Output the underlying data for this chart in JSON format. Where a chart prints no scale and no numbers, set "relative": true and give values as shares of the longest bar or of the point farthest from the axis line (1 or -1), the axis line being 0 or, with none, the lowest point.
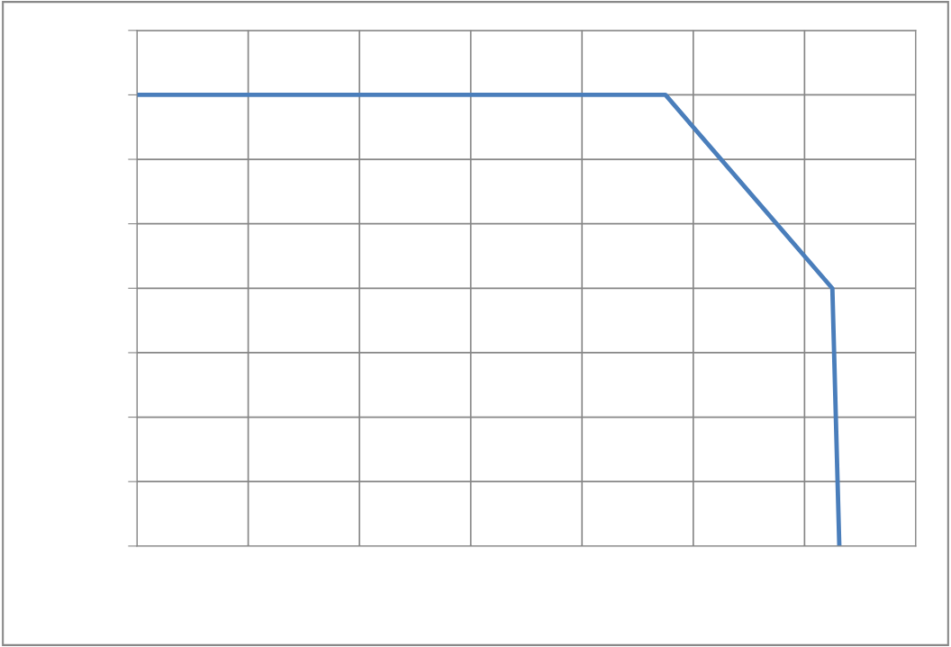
{
  "chart_data": {
    "type": "line",
    "relative": true,
    "grid": true,
    "legend": false,
    "marker": "none",
    "line_style": "solid",
    "categories": [
      null,
      null,
      null,
      null,
      null,
      null,
      null,
      null,
      null,
      null,
      null,
      null,
      null,
      null,
      null,
      null,
      null,
      null,
      null,
      null,
      null,
      null,
      null,
      null,
      null,
      null,
      null,
      null,
      null,
      null,
      null,
      null,
      null,
      null,
      null,
      null,
      null,
      null,
      null,
      null,
      null,
      null,
      null,
      null,
      null,
      null,
      null,
      null,
      null,
      null,
      null,
      null,
      null,
      null,
      null,
      null,
      null,
      null,
      null,
      null,
      null,
      null,
      null,
      null,
      null,
      null,
      null,
      null,
      null,
      null,
      null,
      null,
      null,
      null,
      null,
      null,
      null,
      null,
      null,
      null,
      null,
      null,
      null,
      null,
      null,
      null,
      null,
      null,
      null,
      null,
      null,
      null,
      null,
      null,
      null,
      null,
      null,
      null,
      null,
      null,
      null,
      null,
      null,
      null,
      null,
      null,
      null,
      null,
      null,
      null,
      null,
      null,
      null
    ],
    "series": [
      {
        "color": "#4a7ebb",
        "values": [
          1,
          null,
          null,
          null,
          null,
          null,
          null,
          null,
          null,
          null,
          null,
          null,
          null,
          null,
          null,
          null,
          null,
          null,
          null,
          null,
          null,
          null,
          null,
          null,
          null,
          null,
          null,
          null,
          null,
          null,
          null,
          null,
          null,
          null,
          null,
          null,
          null,
          null,
          null,
          null,
          null,
          null,
          null,
          null,
          null,
          null,
          null,
          null,
          null,
          null,
          null,
          null,
          null,
          null,
          null,
          null,
          null,
          null,
          null,
          null,
          null,
          null,
          null,
          null,
          null,
          null,
          null,
          null,
          null,
          null,
          null,
          null,
          null,
          null,
          null,
          null,
          1,
          null,
          null,
          null,
          null,
          null,
          null,
          null,
          null,
          null,
          null,
          null,
          null,
          null,
          null,
          null,
          null,
          null,
          null,
          null,
          null,
          null,
          null,
          null,
          0.571,
          0,
          null,
          null,
          null,
          null,
          null,
          null,
          null,
          null,
          null,
          null,
          null
        ]
      }
    ]
  }
}
